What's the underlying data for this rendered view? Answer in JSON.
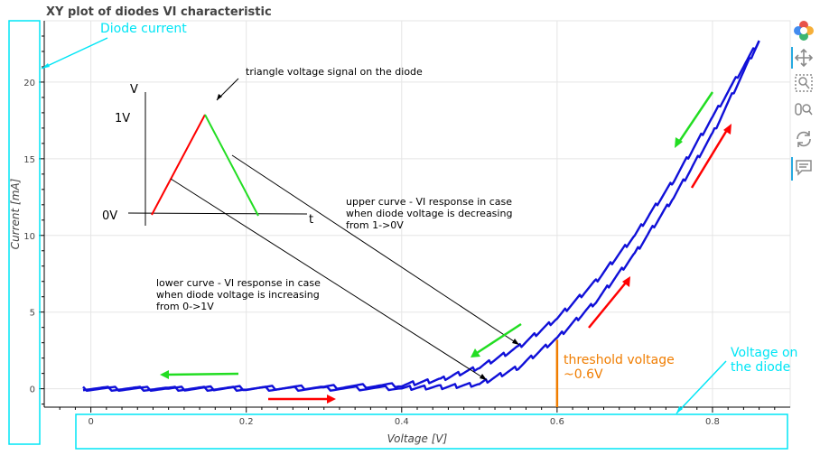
{
  "chart_data": {
    "type": "line",
    "title": "XY plot of diodes VI characteristic",
    "xlabel": "Voltage [V]",
    "ylabel": "Current [mA]",
    "xlim": [
      -0.06,
      0.9
    ],
    "ylim": [
      -1.2,
      24
    ],
    "x_ticks": [
      0,
      0.2,
      0.4,
      0.6,
      0.8
    ],
    "x_tick_labels": [
      "0",
      "0.2",
      "0.4",
      "0.6",
      "0.8"
    ],
    "y_ticks": [
      0,
      5,
      10,
      15,
      20
    ],
    "y_tick_labels": [
      "0",
      "5",
      "10",
      "15",
      "20"
    ],
    "grid": true,
    "series": [
      {
        "color": "#1010d8",
        "x": [
          -0.01,
          0.1,
          0.2,
          0.3,
          0.4,
          0.45,
          0.5,
          0.55,
          0.6,
          0.65,
          0.7,
          0.75,
          0.8,
          0.86
        ],
        "values": [
          0.0,
          0.0,
          0.05,
          0.1,
          0.25,
          0.6,
          1.4,
          2.7,
          4.6,
          7.0,
          10.0,
          13.6,
          17.7,
          22.7
        ]
      },
      {
        "color": "#1010d8",
        "x": [
          -0.01,
          0.1,
          0.2,
          0.3,
          0.4,
          0.45,
          0.5,
          0.55,
          0.6,
          0.65,
          0.7,
          0.75,
          0.8,
          0.86
        ],
        "values": [
          0.0,
          0.0,
          0.0,
          0.0,
          0.05,
          0.1,
          0.3,
          1.4,
          3.3,
          5.7,
          8.8,
          12.5,
          16.6,
          22.7
        ]
      }
    ],
    "annotations": {
      "diode_current": "Diode current",
      "voltage_on_diode": [
        "Voltage on",
        "the diode"
      ],
      "threshold": [
        "threshold voltage",
        "~0.6V"
      ],
      "threshold_x": 0.6,
      "triangle_caption": "triangle voltage signal on the diode",
      "upper_curve": [
        "upper curve - VI response in case",
        "when diode voltage is decreasing",
        "from 1->0V"
      ],
      "lower_curve": [
        "lower curve - VI response in case",
        "when diode voltage is increasing",
        "from 0->1V"
      ],
      "inset_v": "V",
      "inset_1v": "1V",
      "inset_0v": "0V",
      "inset_t": "t"
    },
    "colors": {
      "curve": "#1010d8",
      "highlight": "#00e5f5",
      "threshold": "#f07d00",
      "rising": "#ff0000",
      "falling": "#22dd22"
    }
  },
  "toolbar": {
    "tools": [
      {
        "name": "bokeh-logo-icon"
      },
      {
        "name": "pan-icon"
      },
      {
        "name": "box-zoom-icon"
      },
      {
        "name": "wheel-zoom-icon"
      },
      {
        "name": "reset-icon"
      },
      {
        "name": "hover-icon"
      }
    ]
  }
}
